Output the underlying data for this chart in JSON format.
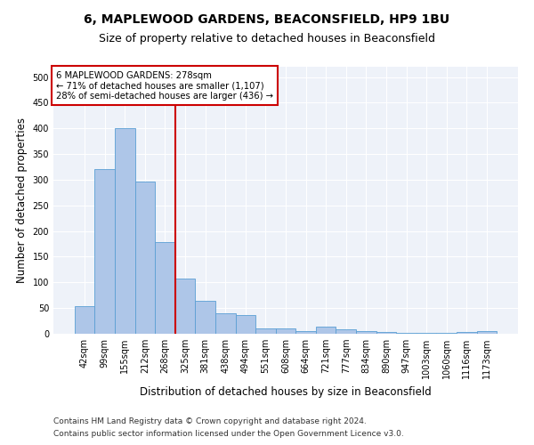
{
  "title": "6, MAPLEWOOD GARDENS, BEACONSFIELD, HP9 1BU",
  "subtitle": "Size of property relative to detached houses in Beaconsfield",
  "xlabel": "Distribution of detached houses by size in Beaconsfield",
  "ylabel": "Number of detached properties",
  "categories": [
    "42sqm",
    "99sqm",
    "155sqm",
    "212sqm",
    "268sqm",
    "325sqm",
    "381sqm",
    "438sqm",
    "494sqm",
    "551sqm",
    "608sqm",
    "664sqm",
    "721sqm",
    "777sqm",
    "834sqm",
    "890sqm",
    "947sqm",
    "1003sqm",
    "1060sqm",
    "1116sqm",
    "1173sqm"
  ],
  "values": [
    53,
    320,
    400,
    297,
    178,
    107,
    65,
    40,
    36,
    10,
    10,
    5,
    14,
    8,
    5,
    3,
    1,
    1,
    1,
    3,
    5
  ],
  "bar_color": "#aec6e8",
  "bar_edge_color": "#5a9fd4",
  "vline_x": 4.5,
  "annotation_line1": "6 MAPLEWOOD GARDENS: 278sqm",
  "annotation_line2": "← 71% of detached houses are smaller (1,107)",
  "annotation_line3": "28% of semi-detached houses are larger (436) →",
  "annotation_box_color": "#ffffff",
  "annotation_box_edge_color": "#cc0000",
  "vertical_line_color": "#cc0000",
  "ylim": [
    0,
    520
  ],
  "yticks": [
    0,
    50,
    100,
    150,
    200,
    250,
    300,
    350,
    400,
    450,
    500
  ],
  "background_color": "#eef2f9",
  "footer_line1": "Contains HM Land Registry data © Crown copyright and database right 2024.",
  "footer_line2": "Contains public sector information licensed under the Open Government Licence v3.0.",
  "title_fontsize": 10,
  "subtitle_fontsize": 9,
  "xlabel_fontsize": 8.5,
  "ylabel_fontsize": 8.5,
  "tick_fontsize": 7,
  "footer_fontsize": 6.5
}
